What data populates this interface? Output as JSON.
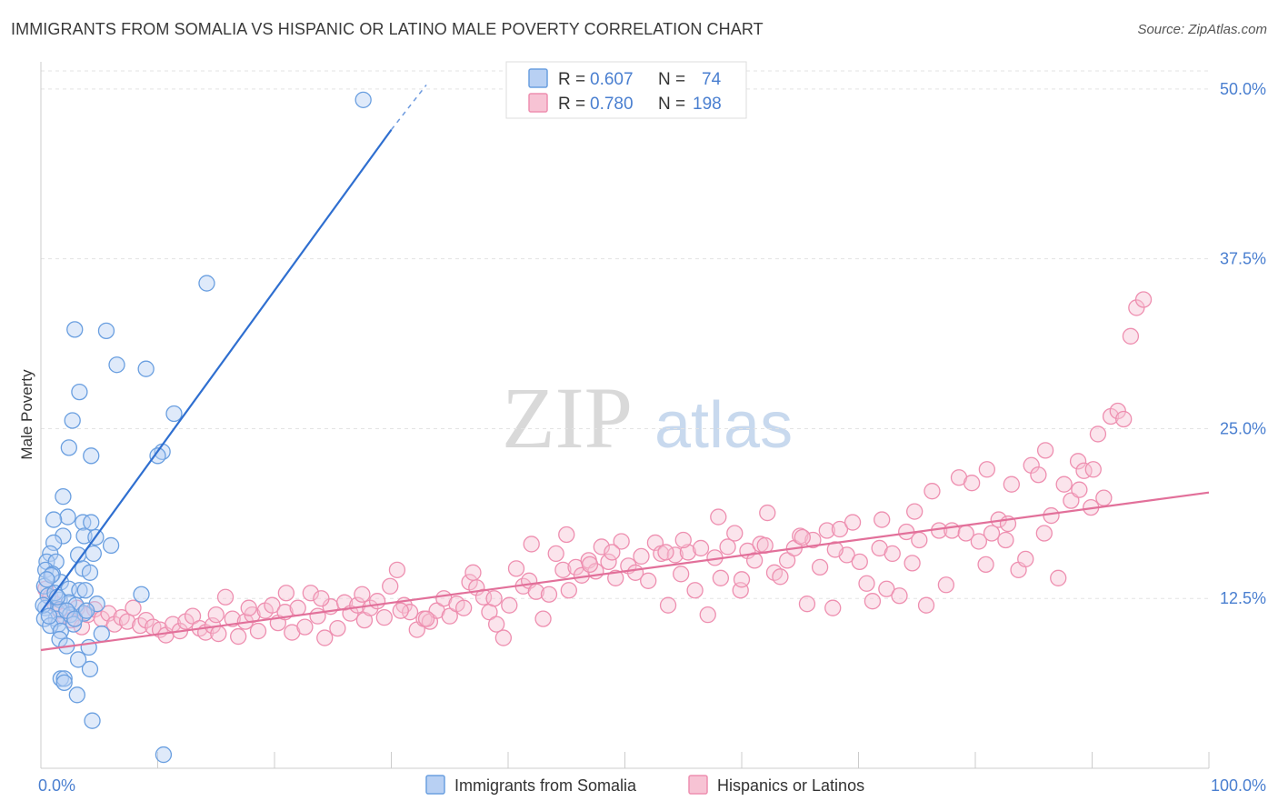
{
  "header": {
    "title": "IMMIGRANTS FROM SOMALIA VS HISPANIC OR LATINO MALE POVERTY CORRELATION CHART",
    "source": "Source: ZipAtlas.com"
  },
  "watermark": {
    "zip": "ZIP",
    "atlas": "atlas"
  },
  "legend": {
    "r_label": "R =",
    "n_label": "N =",
    "entries": [
      {
        "r": "0.607",
        "n": "74"
      },
      {
        "r": "0.780",
        "n": "198"
      }
    ]
  },
  "colors": {
    "somalia": "#6a9fe0",
    "somalia_fill": "#b8d0f3",
    "somalia_line": "#2f6fd0",
    "hispanic": "#ee8fb0",
    "hispanic_fill": "#f7c3d4",
    "hispanic_line": "#e2709a",
    "tick_label": "#4a7fd0"
  },
  "chart_data": {
    "type": "scatter",
    "xlabel": "",
    "ylabel": "Male Poverty",
    "xlim": [
      0,
      100
    ],
    "ylim": [
      0,
      52
    ],
    "x_tick_labels": [
      "0.0%",
      "100.0%"
    ],
    "y_ticks": [
      12.5,
      25.0,
      37.5,
      50.0
    ],
    "y_tick_labels": [
      "12.5%",
      "25.0%",
      "37.5%",
      "50.0%"
    ],
    "grid": true,
    "legend_position": "top-center",
    "series": [
      {
        "name": "Immigrants from Somalia",
        "stats": {
          "R": 0.607,
          "N": 74
        },
        "trend": {
          "x": [
            0,
            30
          ],
          "y": [
            11.5,
            47.0
          ],
          "dashed_to": [
            33,
            50.3
          ]
        },
        "points": [
          [
            27.6,
            49.2
          ],
          [
            14.2,
            35.7
          ],
          [
            2.9,
            32.3
          ],
          [
            5.6,
            32.2
          ],
          [
            6.5,
            29.7
          ],
          [
            9.0,
            29.4
          ],
          [
            3.3,
            27.7
          ],
          [
            2.7,
            25.6
          ],
          [
            11.4,
            26.1
          ],
          [
            2.4,
            23.6
          ],
          [
            4.3,
            23.0
          ],
          [
            10.4,
            23.3
          ],
          [
            10.0,
            23.0
          ],
          [
            1.9,
            20.0
          ],
          [
            2.3,
            18.5
          ],
          [
            1.1,
            18.3
          ],
          [
            3.6,
            18.1
          ],
          [
            4.3,
            18.1
          ],
          [
            1.9,
            17.1
          ],
          [
            3.7,
            17.1
          ],
          [
            4.7,
            17.0
          ],
          [
            1.1,
            16.6
          ],
          [
            6.0,
            16.4
          ],
          [
            0.8,
            15.8
          ],
          [
            3.2,
            15.7
          ],
          [
            4.5,
            15.8
          ],
          [
            0.5,
            15.2
          ],
          [
            1.3,
            15.2
          ],
          [
            0.4,
            14.6
          ],
          [
            1.0,
            14.3
          ],
          [
            3.6,
            14.7
          ],
          [
            4.2,
            14.4
          ],
          [
            1.7,
            13.7
          ],
          [
            0.3,
            13.4
          ],
          [
            2.4,
            13.2
          ],
          [
            3.3,
            13.1
          ],
          [
            3.8,
            13.1
          ],
          [
            8.6,
            12.8
          ],
          [
            0.6,
            12.7
          ],
          [
            1.6,
            12.4
          ],
          [
            2.4,
            12.2
          ],
          [
            3.0,
            12.0
          ],
          [
            4.8,
            12.1
          ],
          [
            0.4,
            11.8
          ],
          [
            1.6,
            11.7
          ],
          [
            3.7,
            11.4
          ],
          [
            2.5,
            11.3
          ],
          [
            1.3,
            11.0
          ],
          [
            0.3,
            11.0
          ],
          [
            1.5,
            10.6
          ],
          [
            2.8,
            10.6
          ],
          [
            0.8,
            10.5
          ],
          [
            1.7,
            10.1
          ],
          [
            5.2,
            9.9
          ],
          [
            1.6,
            9.5
          ],
          [
            2.2,
            9.0
          ],
          [
            4.1,
            8.9
          ],
          [
            3.2,
            8.0
          ],
          [
            4.2,
            7.3
          ],
          [
            1.7,
            6.6
          ],
          [
            2.0,
            6.6
          ],
          [
            2.0,
            6.3
          ],
          [
            3.1,
            5.4
          ],
          [
            4.4,
            3.5
          ],
          [
            10.5,
            1.0
          ],
          [
            0.2,
            12.0
          ],
          [
            0.9,
            14.2
          ],
          [
            2.2,
            11.6
          ],
          [
            1.2,
            12.9
          ],
          [
            0.5,
            13.9
          ],
          [
            2.9,
            11.0
          ],
          [
            0.7,
            11.2
          ],
          [
            3.9,
            11.6
          ],
          [
            1.4,
            12.6
          ]
        ]
      },
      {
        "name": "Hispanics or Latinos",
        "stats": {
          "R": 0.78,
          "N": 198
        },
        "trend": {
          "x": [
            0,
            100
          ],
          "y": [
            8.7,
            20.3
          ]
        },
        "points": [
          [
            0.4,
            13.2
          ],
          [
            0.8,
            12.6
          ],
          [
            1.2,
            12.1
          ],
          [
            1.6,
            11.6
          ],
          [
            2.0,
            11.2
          ],
          [
            2.6,
            10.9
          ],
          [
            3.1,
            11.8
          ],
          [
            3.5,
            10.4
          ],
          [
            4.0,
            11.3
          ],
          [
            4.6,
            11.7
          ],
          [
            5.2,
            11.0
          ],
          [
            5.8,
            11.4
          ],
          [
            6.3,
            10.6
          ],
          [
            6.9,
            11.1
          ],
          [
            7.4,
            10.8
          ],
          [
            7.9,
            11.8
          ],
          [
            8.5,
            10.5
          ],
          [
            9.0,
            10.9
          ],
          [
            9.6,
            10.4
          ],
          [
            10.2,
            10.2
          ],
          [
            10.7,
            9.8
          ],
          [
            11.3,
            10.6
          ],
          [
            11.9,
            10.1
          ],
          [
            12.4,
            10.8
          ],
          [
            13.0,
            11.2
          ],
          [
            13.6,
            10.3
          ],
          [
            14.1,
            10.0
          ],
          [
            14.7,
            10.5
          ],
          [
            15.2,
            9.9
          ],
          [
            15.8,
            12.6
          ],
          [
            16.4,
            11.0
          ],
          [
            16.9,
            9.7
          ],
          [
            17.5,
            10.8
          ],
          [
            18.1,
            11.3
          ],
          [
            18.6,
            10.1
          ],
          [
            19.2,
            11.6
          ],
          [
            19.8,
            12.0
          ],
          [
            20.3,
            10.7
          ],
          [
            20.9,
            11.5
          ],
          [
            21.5,
            10.0
          ],
          [
            22.0,
            11.8
          ],
          [
            22.6,
            10.4
          ],
          [
            23.1,
            12.9
          ],
          [
            23.7,
            11.2
          ],
          [
            24.3,
            9.6
          ],
          [
            24.8,
            11.9
          ],
          [
            25.4,
            10.3
          ],
          [
            26.0,
            12.2
          ],
          [
            26.5,
            11.4
          ],
          [
            27.1,
            12.0
          ],
          [
            27.7,
            10.9
          ],
          [
            28.2,
            11.8
          ],
          [
            28.8,
            12.3
          ],
          [
            29.4,
            11.1
          ],
          [
            29.9,
            13.4
          ],
          [
            30.5,
            14.6
          ],
          [
            31.1,
            12.0
          ],
          [
            31.6,
            11.5
          ],
          [
            32.2,
            10.2
          ],
          [
            32.8,
            11.0
          ],
          [
            33.3,
            10.8
          ],
          [
            33.9,
            11.6
          ],
          [
            34.5,
            12.5
          ],
          [
            35.0,
            11.2
          ],
          [
            35.6,
            12.1
          ],
          [
            36.2,
            11.8
          ],
          [
            36.7,
            13.7
          ],
          [
            37.3,
            13.3
          ],
          [
            37.9,
            12.6
          ],
          [
            38.4,
            11.5
          ],
          [
            39.0,
            10.6
          ],
          [
            39.6,
            9.6
          ],
          [
            40.1,
            12.0
          ],
          [
            40.7,
            14.7
          ],
          [
            41.3,
            13.4
          ],
          [
            41.8,
            13.8
          ],
          [
            42.4,
            13.0
          ],
          [
            43.0,
            11.0
          ],
          [
            43.5,
            12.8
          ],
          [
            44.1,
            15.8
          ],
          [
            44.7,
            14.6
          ],
          [
            45.2,
            13.1
          ],
          [
            45.8,
            14.8
          ],
          [
            46.3,
            14.2
          ],
          [
            46.9,
            15.3
          ],
          [
            47.5,
            14.5
          ],
          [
            48.0,
            16.3
          ],
          [
            48.6,
            15.2
          ],
          [
            49.2,
            14.0
          ],
          [
            49.7,
            16.7
          ],
          [
            50.3,
            14.9
          ],
          [
            50.9,
            14.4
          ],
          [
            51.4,
            15.6
          ],
          [
            52.0,
            13.8
          ],
          [
            52.6,
            16.6
          ],
          [
            53.1,
            15.8
          ],
          [
            53.7,
            12.0
          ],
          [
            54.3,
            15.7
          ],
          [
            54.8,
            14.3
          ],
          [
            55.4,
            15.9
          ],
          [
            56.0,
            13.1
          ],
          [
            56.5,
            16.2
          ],
          [
            57.1,
            11.3
          ],
          [
            57.7,
            15.5
          ],
          [
            58.2,
            14.0
          ],
          [
            58.8,
            16.3
          ],
          [
            59.4,
            17.3
          ],
          [
            59.9,
            13.1
          ],
          [
            60.5,
            16.0
          ],
          [
            61.1,
            15.3
          ],
          [
            61.6,
            16.5
          ],
          [
            62.2,
            18.8
          ],
          [
            62.8,
            14.4
          ],
          [
            63.3,
            14.1
          ],
          [
            63.9,
            15.3
          ],
          [
            64.5,
            16.2
          ],
          [
            65.0,
            17.1
          ],
          [
            65.6,
            12.1
          ],
          [
            66.1,
            16.8
          ],
          [
            66.7,
            14.8
          ],
          [
            67.3,
            17.5
          ],
          [
            67.8,
            11.8
          ],
          [
            68.4,
            17.6
          ],
          [
            69.0,
            15.7
          ],
          [
            69.5,
            18.1
          ],
          [
            70.1,
            15.2
          ],
          [
            70.7,
            13.6
          ],
          [
            71.2,
            12.3
          ],
          [
            71.8,
            16.2
          ],
          [
            72.4,
            13.2
          ],
          [
            72.9,
            15.8
          ],
          [
            73.5,
            12.7
          ],
          [
            74.1,
            17.4
          ],
          [
            74.6,
            15.1
          ],
          [
            75.2,
            16.8
          ],
          [
            75.8,
            12.0
          ],
          [
            76.3,
            20.4
          ],
          [
            76.9,
            17.5
          ],
          [
            77.5,
            13.5
          ],
          [
            78.0,
            17.5
          ],
          [
            78.6,
            21.4
          ],
          [
            79.2,
            17.3
          ],
          [
            79.7,
            21.0
          ],
          [
            80.3,
            16.7
          ],
          [
            80.9,
            15.0
          ],
          [
            81.4,
            17.3
          ],
          [
            82.0,
            18.3
          ],
          [
            82.6,
            16.8
          ],
          [
            83.1,
            20.9
          ],
          [
            83.7,
            14.6
          ],
          [
            84.3,
            15.4
          ],
          [
            84.8,
            22.3
          ],
          [
            85.4,
            21.6
          ],
          [
            85.9,
            17.3
          ],
          [
            86.5,
            18.6
          ],
          [
            87.1,
            14.0
          ],
          [
            87.6,
            20.9
          ],
          [
            88.2,
            19.7
          ],
          [
            88.8,
            22.6
          ],
          [
            89.3,
            21.9
          ],
          [
            89.9,
            19.2
          ],
          [
            90.5,
            24.6
          ],
          [
            91.0,
            19.9
          ],
          [
            91.6,
            25.9
          ],
          [
            92.2,
            26.3
          ],
          [
            92.7,
            25.7
          ],
          [
            93.3,
            31.8
          ],
          [
            93.8,
            33.9
          ],
          [
            94.4,
            34.5
          ],
          [
            17.8,
            11.8
          ],
          [
            24.0,
            12.5
          ],
          [
            37.0,
            14.4
          ],
          [
            45.0,
            17.2
          ],
          [
            53.5,
            15.9
          ],
          [
            58.0,
            18.5
          ],
          [
            65.2,
            17.0
          ],
          [
            72.0,
            18.3
          ],
          [
            81.0,
            22.0
          ],
          [
            86.0,
            23.4
          ],
          [
            90.1,
            22.0
          ],
          [
            15.0,
            11.3
          ],
          [
            27.5,
            12.8
          ],
          [
            33.0,
            11.0
          ],
          [
            42.0,
            16.5
          ],
          [
            48.9,
            15.9
          ],
          [
            55.0,
            16.8
          ],
          [
            62.0,
            16.4
          ],
          [
            68.0,
            16.1
          ],
          [
            74.8,
            18.9
          ],
          [
            82.8,
            18.0
          ],
          [
            88.9,
            20.5
          ],
          [
            21.0,
            12.9
          ],
          [
            30.8,
            11.6
          ],
          [
            38.8,
            12.5
          ],
          [
            47.0,
            15.0
          ],
          [
            60.0,
            13.9
          ]
        ]
      }
    ]
  },
  "bottom_legend": [
    {
      "label": "Immigrants from Somalia"
    },
    {
      "label": "Hispanics or Latinos"
    }
  ]
}
